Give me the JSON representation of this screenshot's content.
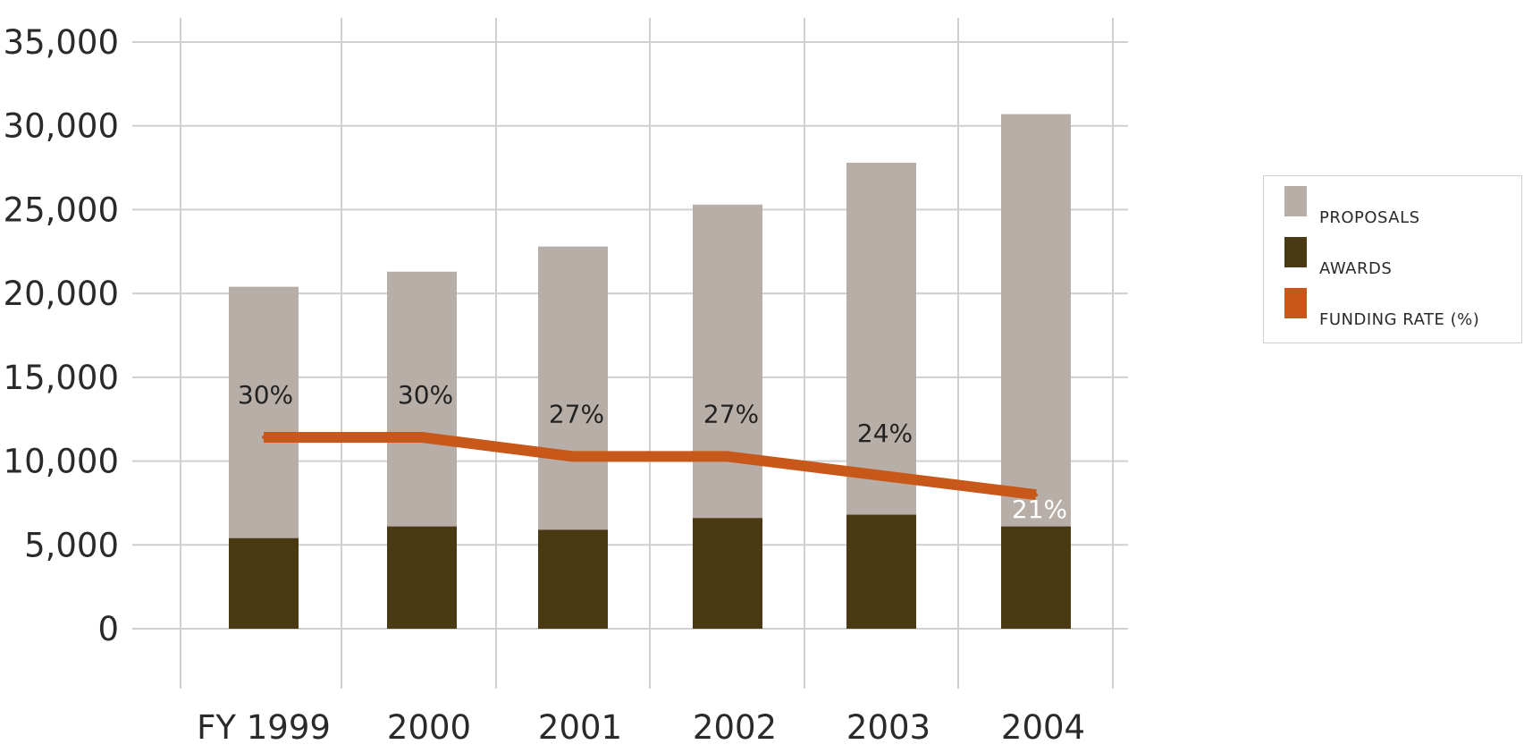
{
  "chart_data": {
    "type": "bar",
    "stacked": true,
    "categories": [
      "FY 1999",
      "2000",
      "2001",
      "2002",
      "2003",
      "2004"
    ],
    "series": [
      {
        "name": "PROPOSALS",
        "kind": "bar",
        "color": "#b8aea8",
        "values": [
          20400,
          21300,
          22800,
          25300,
          27800,
          30700
        ]
      },
      {
        "name": "AWARDS",
        "kind": "bar",
        "color": "#4a3a14",
        "values": [
          5400,
          6100,
          5900,
          6600,
          6800,
          6100
        ]
      },
      {
        "name": "FUNDING RATE (%)",
        "kind": "line",
        "color": "#c8571a",
        "values": [
          30,
          30,
          27,
          27,
          24,
          21
        ],
        "labels": [
          "30%",
          "30%",
          "27%",
          "27%",
          "24%",
          "21%"
        ]
      }
    ],
    "y_ticks": [
      "0",
      "5,000",
      "10,000",
      "15,000",
      "20,000",
      "25,000",
      "30,000",
      "35,000"
    ],
    "ylim": [
      0,
      35000
    ],
    "grid": true,
    "legend_position": "right"
  }
}
